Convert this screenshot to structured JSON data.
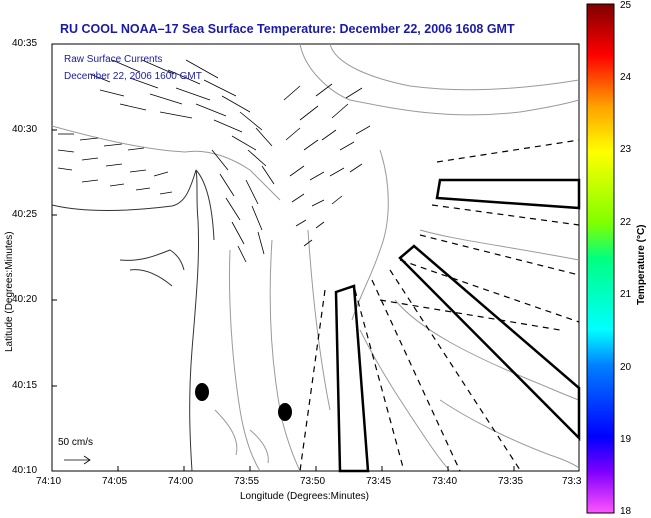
{
  "title": "RU COOL  NOAA–17  Sea Surface Temperature:  December 22, 2006 1608 GMT",
  "inset": {
    "line1": "Raw Surface Currents",
    "line2": "December 22, 2006 1600 GMT"
  },
  "scale_label": "50 cm/s",
  "axes": {
    "xlabel": "Longitude (Degrees:Minutes)",
    "ylabel": "Latitude (Degrees:Minutes)",
    "x_ticks": [
      "74:10",
      "74:05",
      "74:00",
      "73:55",
      "73:50",
      "73:45",
      "73:40",
      "73:35",
      "73:3"
    ],
    "y_ticks": [
      "40:35",
      "40:30",
      "40:25",
      "40:20",
      "40:15",
      "40:10"
    ]
  },
  "colorbar": {
    "label": "Temperature (°C)",
    "ticks": [
      "25",
      "24",
      "23",
      "22",
      "21",
      "20",
      "19",
      "18"
    ],
    "min": 18,
    "max": 25
  },
  "colors": {
    "title": "#1a1aa8",
    "contours": "#9a9a9a",
    "coast": "#333333"
  }
}
